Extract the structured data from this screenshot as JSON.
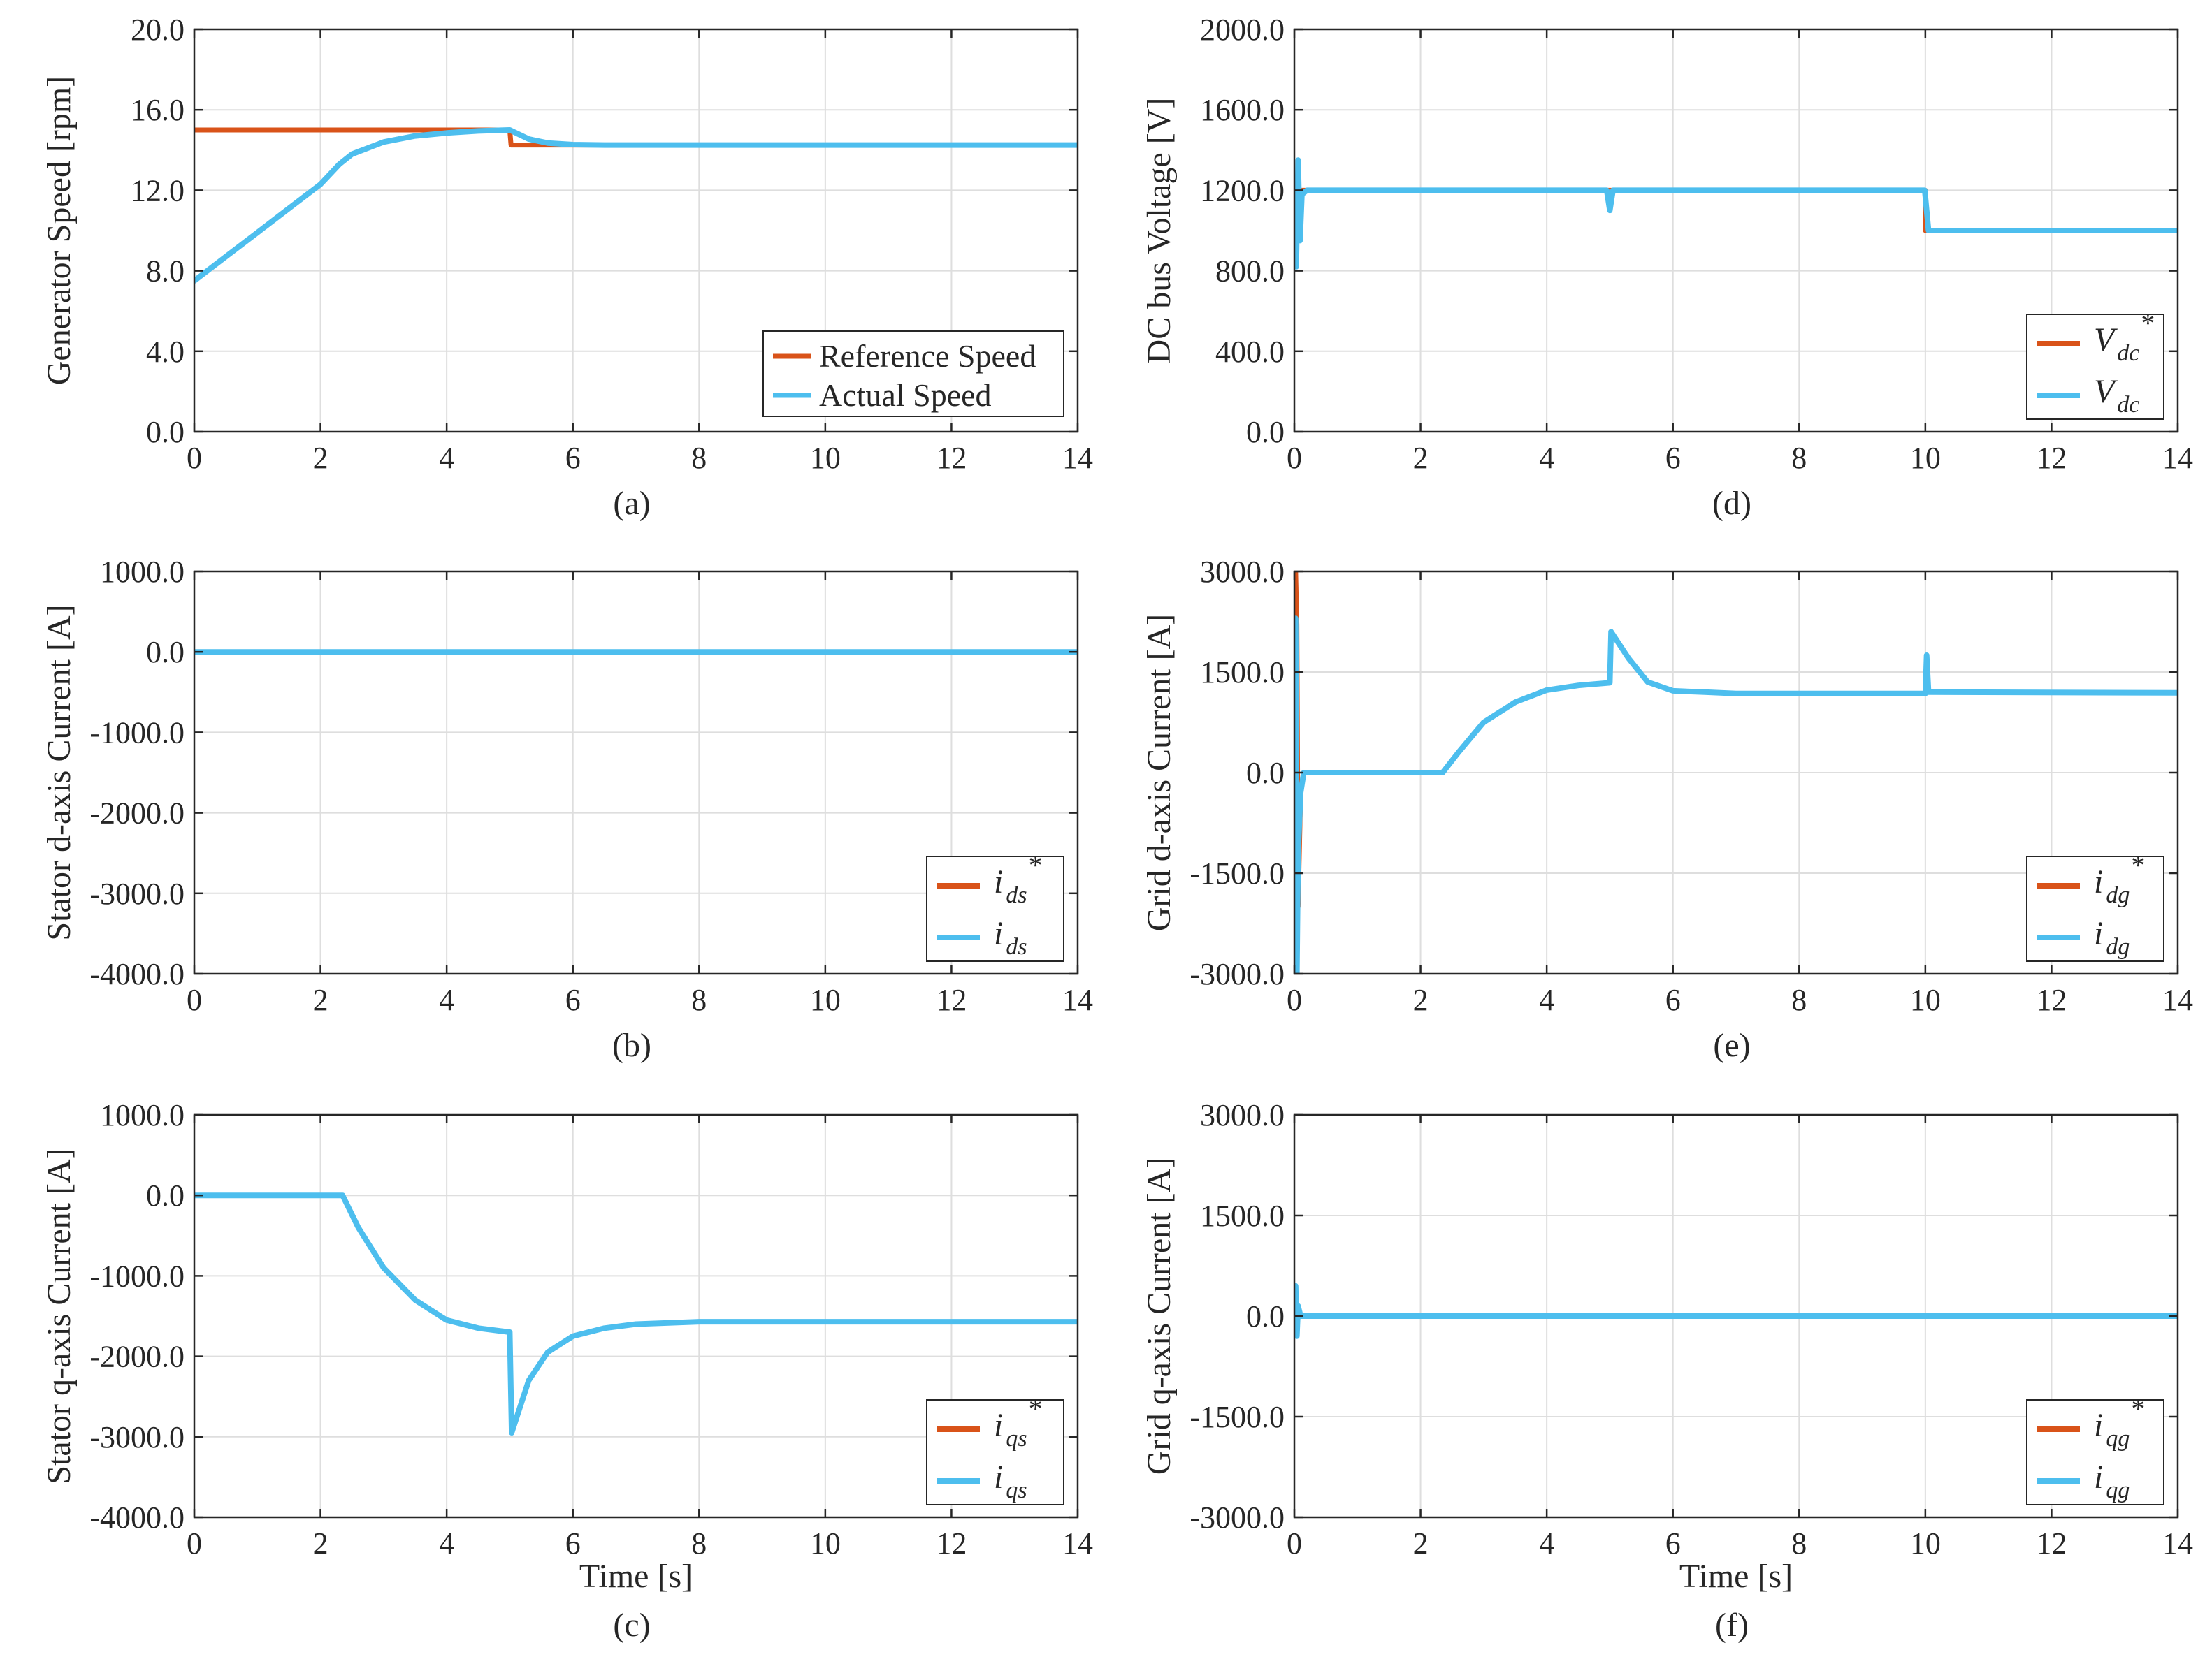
{
  "colors": {
    "reference": "#d95319",
    "actual": "#4dbeee",
    "grid": "#dedede",
    "axis": "#262626"
  },
  "chart_data": [
    {
      "id": "a",
      "type": "line",
      "caption": "(a)",
      "xlabel": "",
      "ylabel": "Generator Speed [rpm]",
      "xlim": [
        0,
        14
      ],
      "ylim": [
        0,
        20
      ],
      "xticks": [
        0,
        2,
        4,
        6,
        8,
        10,
        12,
        14
      ],
      "xtick_labels": [
        "0",
        "2",
        "4",
        "6",
        "8",
        "10",
        "12",
        "14"
      ],
      "yticks": [
        0,
        4,
        8,
        12,
        16,
        20
      ],
      "ytick_labels": [
        "0.0",
        "4.0",
        "8.0",
        "12.0",
        "16.0",
        "20.0"
      ],
      "legend": {
        "position": "bottom-right",
        "style": "text",
        "entries": [
          "Reference Speed",
          "Actual Speed"
        ]
      },
      "series": [
        {
          "name": "Reference Speed",
          "color": "reference",
          "x": [
            0,
            5,
            5.02,
            14
          ],
          "y": [
            15,
            15,
            14.25,
            14.25
          ]
        },
        {
          "name": "Actual Speed",
          "color": "actual",
          "x": [
            0,
            0.5,
            1,
            1.5,
            2,
            2.3,
            2.5,
            3,
            3.5,
            4,
            4.5,
            5,
            5.3,
            5.6,
            6,
            6.5,
            7,
            14
          ],
          "y": [
            7.5,
            8.7,
            9.9,
            11.1,
            12.3,
            13.3,
            13.8,
            14.4,
            14.7,
            14.85,
            14.95,
            15,
            14.55,
            14.35,
            14.27,
            14.25,
            14.25,
            14.25
          ]
        }
      ]
    },
    {
      "id": "b",
      "type": "line",
      "caption": "(b)",
      "xlabel": "",
      "ylabel": "Stator d-axis Current [A]",
      "xlim": [
        0,
        14
      ],
      "ylim": [
        -4000,
        1000
      ],
      "xticks": [
        0,
        2,
        4,
        6,
        8,
        10,
        12,
        14
      ],
      "xtick_labels": [
        "0",
        "2",
        "4",
        "6",
        "8",
        "10",
        "12",
        "14"
      ],
      "yticks": [
        -4000,
        -3000,
        -2000,
        -1000,
        0,
        1000
      ],
      "ytick_labels": [
        "-4000.0",
        "-3000.0",
        "-2000.0",
        "-1000.0",
        "0.0",
        "1000.0"
      ],
      "legend": {
        "position": "bottom-right",
        "style": "math",
        "symbol": "i",
        "subscript": "ds",
        "star": "*"
      },
      "series": [
        {
          "name": "i_ds*",
          "color": "reference",
          "x": [
            0,
            14
          ],
          "y": [
            0,
            0
          ]
        },
        {
          "name": "i_ds",
          "color": "actual",
          "x": [
            0,
            14
          ],
          "y": [
            0,
            0
          ]
        }
      ]
    },
    {
      "id": "c",
      "type": "line",
      "caption": "(c)",
      "xlabel": "Time [s]",
      "ylabel": "Stator q-axis Current [A]",
      "xlim": [
        0,
        14
      ],
      "ylim": [
        -4000,
        1000
      ],
      "xticks": [
        0,
        2,
        4,
        6,
        8,
        10,
        12,
        14
      ],
      "xtick_labels": [
        "0",
        "2",
        "4",
        "6",
        "8",
        "10",
        "12",
        "14"
      ],
      "yticks": [
        -4000,
        -3000,
        -2000,
        -1000,
        0,
        1000
      ],
      "ytick_labels": [
        "-4000.0",
        "-3000.0",
        "-2000.0",
        "-1000.0",
        "0.0",
        "1000.0"
      ],
      "legend": {
        "position": "bottom-right",
        "style": "math",
        "symbol": "i",
        "subscript": "qs",
        "star": "*"
      },
      "series": [
        {
          "name": "i_qs*",
          "color": "reference",
          "x": [
            0,
            2.35,
            2.6,
            3,
            3.5,
            4,
            4.5,
            5,
            5.03,
            5.3,
            5.6,
            6,
            6.5,
            7,
            8,
            14
          ],
          "y": [
            0,
            0,
            -400,
            -900,
            -1300,
            -1550,
            -1650,
            -1700,
            -2950,
            -2300,
            -1950,
            -1750,
            -1650,
            -1600,
            -1570,
            -1570
          ]
        },
        {
          "name": "i_qs",
          "color": "actual",
          "x": [
            0,
            2.35,
            2.6,
            3,
            3.5,
            4,
            4.5,
            5,
            5.03,
            5.3,
            5.6,
            6,
            6.5,
            7,
            8,
            14
          ],
          "y": [
            0,
            0,
            -400,
            -900,
            -1300,
            -1550,
            -1650,
            -1700,
            -2950,
            -2300,
            -1950,
            -1750,
            -1650,
            -1600,
            -1570,
            -1570
          ]
        }
      ]
    },
    {
      "id": "d",
      "type": "line",
      "caption": "(d)",
      "xlabel": "",
      "ylabel": "DC bus Voltage [V]",
      "xlim": [
        0,
        14
      ],
      "ylim": [
        0,
        2000
      ],
      "xticks": [
        0,
        2,
        4,
        6,
        8,
        10,
        12,
        14
      ],
      "xtick_labels": [
        "0",
        "2",
        "4",
        "6",
        "8",
        "10",
        "12",
        "14"
      ],
      "yticks": [
        0,
        400,
        800,
        1200,
        1600,
        2000
      ],
      "ytick_labels": [
        "0.0",
        "400.0",
        "800.0",
        "1200.0",
        "1600.0",
        "2000.0"
      ],
      "legend": {
        "position": "bottom-right",
        "style": "math",
        "symbol": "V",
        "subscript": "dc",
        "star": "*"
      },
      "series": [
        {
          "name": "V_dc*",
          "color": "reference",
          "x": [
            0,
            10,
            10,
            14
          ],
          "y": [
            1200,
            1200,
            1000,
            1000
          ]
        },
        {
          "name": "V_dc",
          "color": "actual",
          "x": [
            0,
            0.03,
            0.06,
            0.09,
            0.12,
            0.2,
            4.95,
            5.0,
            5.05,
            9.99,
            10.05,
            14
          ],
          "y": [
            1000,
            820,
            1350,
            950,
            1180,
            1200,
            1200,
            1100,
            1200,
            1200,
            1000,
            1000
          ]
        }
      ]
    },
    {
      "id": "e",
      "type": "line",
      "caption": "(e)",
      "xlabel": "",
      "ylabel": "Grid d-axis Current [A]",
      "xlim": [
        0,
        14
      ],
      "ylim": [
        -3000,
        3000
      ],
      "xticks": [
        0,
        2,
        4,
        6,
        8,
        10,
        12,
        14
      ],
      "xtick_labels": [
        "0",
        "2",
        "4",
        "6",
        "8",
        "10",
        "12",
        "14"
      ],
      "yticks": [
        -3000,
        -1500,
        0,
        1500,
        3000
      ],
      "ytick_labels": [
        "-3000.0",
        "-1500.0",
        "0.0",
        "1500.0",
        "3000.0"
      ],
      "legend": {
        "position": "bottom-right",
        "style": "math",
        "symbol": "i",
        "subscript": "dg",
        "star": "*"
      },
      "series": [
        {
          "name": "i_dg*",
          "color": "reference",
          "x": [
            0,
            0.02,
            0.04,
            0.06,
            0.1,
            0.15,
            2.35,
            2.6,
            3,
            3.5,
            4,
            4.5,
            5,
            5.02,
            5.3,
            5.6,
            6,
            6.5,
            7,
            10,
            10.02,
            10.05,
            14
          ],
          "y": [
            2400,
            3000,
            2200,
            -2000,
            -300,
            0,
            0,
            300,
            750,
            1050,
            1230,
            1300,
            1340,
            2100,
            1700,
            1350,
            1220,
            1200,
            1180,
            1180,
            1750,
            1200,
            1190
          ]
        },
        {
          "name": "i_dg",
          "color": "actual",
          "x": [
            0,
            0.02,
            0.04,
            0.06,
            0.1,
            0.15,
            2.35,
            2.6,
            3,
            3.5,
            4,
            4.5,
            5,
            5.02,
            5.3,
            5.6,
            6,
            6.5,
            7,
            10,
            10.02,
            10.05,
            14
          ],
          "y": [
            0,
            2300,
            -3000,
            -1200,
            -300,
            0,
            0,
            300,
            750,
            1050,
            1230,
            1300,
            1340,
            2100,
            1700,
            1350,
            1220,
            1200,
            1180,
            1180,
            1750,
            1200,
            1190
          ]
        }
      ]
    },
    {
      "id": "f",
      "type": "line",
      "caption": "(f)",
      "xlabel": "Time [s]",
      "ylabel": "Grid q-axis Current [A]",
      "xlim": [
        0,
        14
      ],
      "ylim": [
        -3000,
        3000
      ],
      "xticks": [
        0,
        2,
        4,
        6,
        8,
        10,
        12,
        14
      ],
      "xtick_labels": [
        "0",
        "2",
        "4",
        "6",
        "8",
        "10",
        "12",
        "14"
      ],
      "yticks": [
        -3000,
        -1500,
        0,
        1500,
        3000
      ],
      "ytick_labels": [
        "-3000.0",
        "-1500.0",
        "0.0",
        "1500.0",
        "3000.0"
      ],
      "legend": {
        "position": "bottom-right",
        "style": "math",
        "symbol": "i",
        "subscript": "qg",
        "star": "*"
      },
      "series": [
        {
          "name": "i_qg*",
          "color": "reference",
          "x": [
            0,
            14
          ],
          "y": [
            0,
            0
          ]
        },
        {
          "name": "i_qg",
          "color": "actual",
          "x": [
            0,
            0.02,
            0.04,
            0.06,
            0.1,
            14
          ],
          "y": [
            0,
            450,
            -300,
            150,
            0,
            0
          ]
        }
      ]
    }
  ]
}
